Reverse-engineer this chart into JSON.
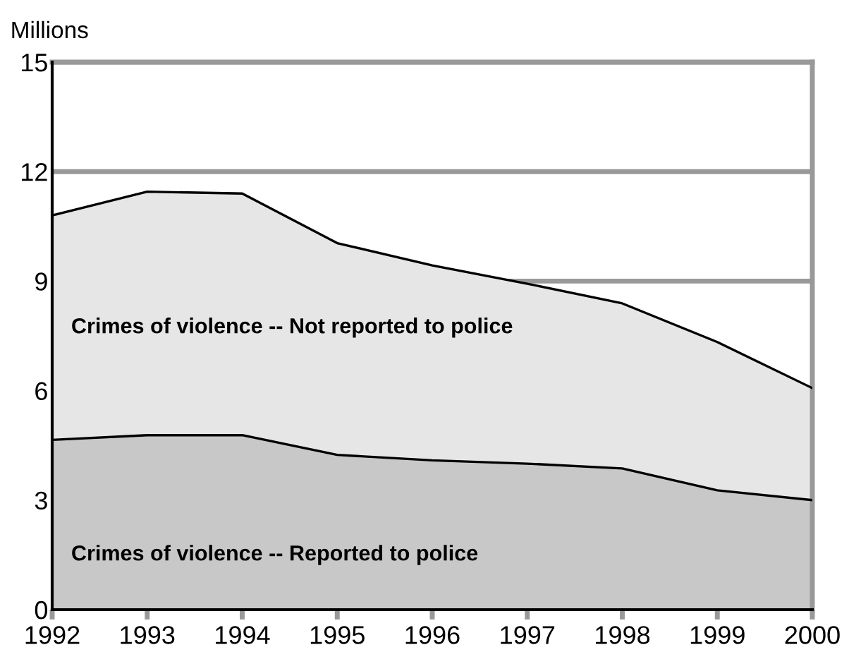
{
  "chart_data": {
    "type": "area",
    "stacked": true,
    "ylabel": "Millions",
    "x": [
      1992,
      1993,
      1994,
      1995,
      1996,
      1997,
      1998,
      1999,
      2000
    ],
    "series": [
      {
        "name": "Crimes of violence -- Reported to police",
        "color": "#c8c8c8",
        "values": [
          4.65,
          4.78,
          4.78,
          4.24,
          4.09,
          4.0,
          3.87,
          3.27,
          3.0
        ]
      },
      {
        "name": "Crimes of violence -- Not reported to police",
        "color": "#e6e6e6",
        "values": [
          6.15,
          6.67,
          6.62,
          5.8,
          5.34,
          4.93,
          4.52,
          4.06,
          3.07
        ]
      }
    ],
    "xlim": [
      1992,
      2000
    ],
    "xticks": [
      1992,
      1993,
      1994,
      1995,
      1996,
      1997,
      1998,
      1999,
      2000
    ],
    "ylim": [
      0,
      15
    ],
    "yticks": [
      0,
      3,
      6,
      9,
      12,
      15
    ],
    "grid": "y",
    "legend": false
  }
}
